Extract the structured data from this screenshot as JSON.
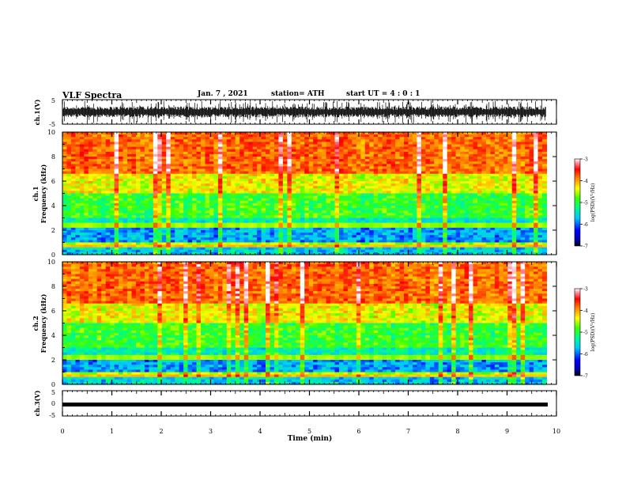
{
  "header": {
    "title": "VLF Spectra",
    "date": "Jan. 7 , 2021",
    "station": "station= ATH",
    "start": "start UT = 4 : 0 : 1"
  },
  "chart_data": [
    {
      "name": "ch1-waveform",
      "type": "line",
      "ylabel": "ch.1(V)",
      "yticks": [
        "5",
        "-5"
      ],
      "ylim": [
        -5,
        5
      ],
      "xlim": [
        0,
        10
      ]
    },
    {
      "name": "ch1-spectrogram",
      "type": "heatmap",
      "ylabel": "ch.1",
      "ylabel2": "Frequency (kHz)",
      "yticks": [
        "0",
        "2",
        "4",
        "6",
        "8",
        "10"
      ],
      "ylim": [
        0,
        10
      ],
      "xlim": [
        0,
        10
      ],
      "data_end_min": 9.8,
      "colorbar": {
        "label": "log(PSD)(V²/Hz)",
        "ticks": [
          "-3",
          "-4",
          "-5",
          "-6",
          "-7"
        ],
        "range": [
          -7,
          -3
        ]
      }
    },
    {
      "name": "ch2-spectrogram",
      "type": "heatmap",
      "ylabel": "ch.2",
      "ylabel2": "Frequency (kHz)",
      "yticks": [
        "0",
        "2",
        "4",
        "6",
        "8",
        "10"
      ],
      "ylim": [
        0,
        10
      ],
      "xlim": [
        0,
        10
      ],
      "data_end_min": 9.8,
      "colorbar": {
        "label": "log(PSD)(V²/Hz)",
        "ticks": [
          "-3",
          "-4",
          "-5",
          "-6",
          "-7"
        ],
        "range": [
          -7,
          -3
        ]
      }
    },
    {
      "name": "ch3-waveform",
      "type": "line",
      "ylabel": "ch.3(V)",
      "yticks": [
        "5",
        "0",
        "-5"
      ],
      "ylim": [
        -5,
        5
      ],
      "xlim": [
        0,
        10
      ],
      "xlabel": "Time (min)",
      "xticks": [
        "0",
        "1",
        "2",
        "3",
        "4",
        "5",
        "6",
        "7",
        "8",
        "9",
        "10"
      ]
    }
  ]
}
